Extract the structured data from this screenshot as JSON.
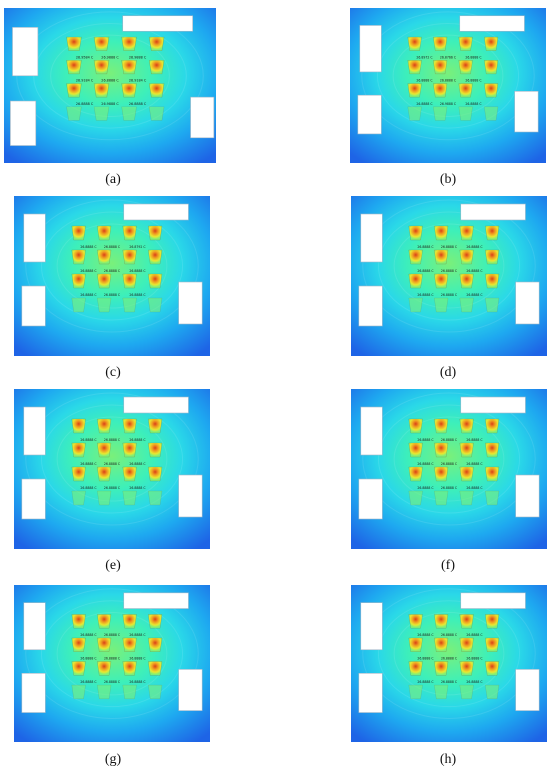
{
  "figure": {
    "panels": [
      {
        "label": "(a)",
        "readings": [
          "26.9584 C",
          "26.9888 C",
          "26.9888 C",
          "26.9184 C",
          "26.8888 C",
          "26.9184 C",
          "26.8888 C",
          "26.9888 C",
          "26.8888 C"
        ]
      },
      {
        "label": "(b)",
        "readings": [
          "26.8972 C",
          "26.8766 C",
          "26.8888 C",
          "26.8888 C",
          "26.8888 C",
          "26.8888 C",
          "26.8888 C",
          "26.9888 C",
          "26.8888 C"
        ]
      },
      {
        "label": "(c)",
        "readings": [
          "26.8888 C",
          "26.8888 C",
          "26.8792 C",
          "26.8888 C",
          "26.8888 C",
          "26.8888 C",
          "26.8888 C",
          "26.8888 C",
          "26.8888 C"
        ]
      },
      {
        "label": "(d)",
        "readings": [
          "26.8888 C",
          "26.8888 C",
          "26.8888 C",
          "26.8888 C",
          "26.8888 C",
          "26.8888 C",
          "26.8888 C",
          "26.8888 C",
          "26.8888 C"
        ]
      },
      {
        "label": "(e)",
        "readings": [
          "26.8888 C",
          "26.8888 C",
          "26.8888 C",
          "26.8888 C",
          "26.8888 C",
          "26.8888 C",
          "26.8888 C",
          "26.8888 C",
          "26.8888 C"
        ]
      },
      {
        "label": "(f)",
        "readings": [
          "26.8888 C",
          "26.8888 C",
          "26.8888 C",
          "26.8888 C",
          "26.8888 C",
          "26.8888 C",
          "26.8888 C",
          "26.8888 C",
          "26.8888 C"
        ]
      },
      {
        "label": "(g)",
        "readings": [
          "26.8888 C",
          "26.8888 C",
          "26.8888 C",
          "26.8888 C",
          "26.8888 C",
          "26.8888 C",
          "26.8888 C",
          "26.8888 C",
          "26.8888 C"
        ]
      },
      {
        "label": "(h)",
        "readings": [
          "26.8888 C",
          "26.8888 C",
          "26.8888 C",
          "26.8888 C",
          "26.8888 C",
          "26.8888 C",
          "26.8888 C",
          "26.8888 C",
          "26.8888 C"
        ]
      }
    ],
    "colors": {
      "outer_blue": "#1e64e6",
      "mid_blue": "#1ea8f0",
      "cyan": "#2ad8e8",
      "teal": "#3ef0b8",
      "light_green": "#7af07a",
      "hot_yellow": "#e8e830",
      "hot_orange": "#f09a20",
      "hot_red": "#d84018",
      "white_block": "#ffffff"
    }
  }
}
